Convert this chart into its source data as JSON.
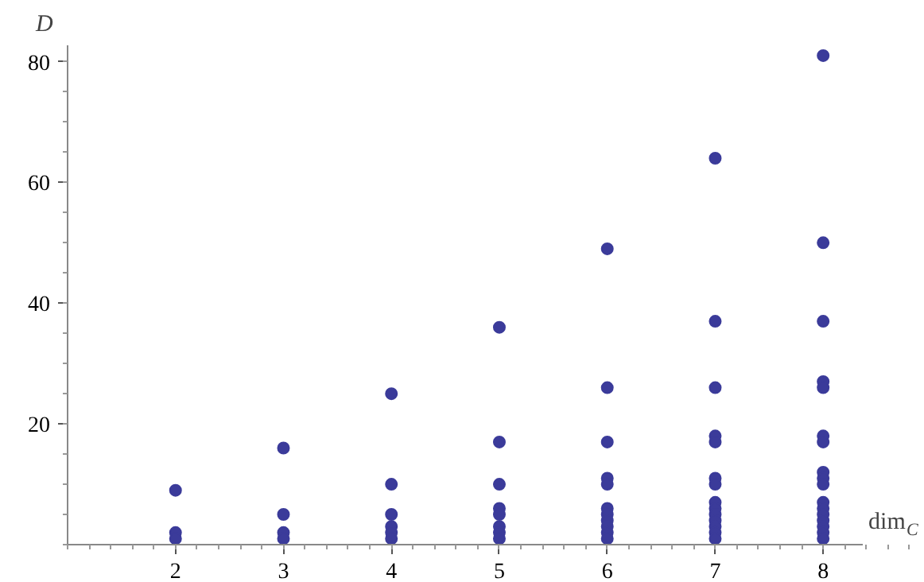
{
  "chart_data": {
    "type": "scatter",
    "xlabel": "dim$_{C}$",
    "ylabel": "D",
    "marker": "circle",
    "grid": false,
    "xlim": [
      1,
      8.36
    ],
    "ylim": [
      0,
      82.7
    ],
    "xticks": [
      2,
      3,
      4,
      5,
      6,
      7,
      8
    ],
    "yticks": [
      20,
      40,
      60,
      80
    ],
    "x": [
      2,
      2,
      2,
      3,
      3,
      3,
      3,
      4,
      4,
      4,
      4,
      4,
      4,
      5,
      5,
      5,
      5,
      5,
      5,
      5,
      5,
      6,
      6,
      6,
      6,
      6,
      6,
      6,
      6,
      6,
      6,
      6,
      7,
      7,
      7,
      7,
      7,
      7,
      7,
      7,
      7,
      7,
      7,
      7,
      7,
      7,
      8,
      8,
      8,
      8,
      8,
      8,
      8,
      8,
      8,
      8,
      8,
      8,
      8,
      8,
      8,
      8,
      8
    ],
    "series": [
      {
        "color": "#3b3b9a",
        "values": [
          9,
          2,
          1,
          16,
          5,
          2,
          1,
          25,
          10,
          5,
          3,
          2,
          1,
          36,
          17,
          10,
          6,
          5,
          3,
          2,
          1,
          49,
          26,
          17,
          11,
          10,
          6,
          5,
          4,
          3,
          2,
          1,
          64,
          37,
          26,
          18,
          17,
          11,
          10,
          7,
          6,
          5,
          4,
          3,
          2,
          1,
          81,
          50,
          37,
          27,
          26,
          18,
          17,
          12,
          11,
          10,
          7,
          6,
          5,
          4,
          3,
          2,
          1
        ]
      }
    ]
  }
}
